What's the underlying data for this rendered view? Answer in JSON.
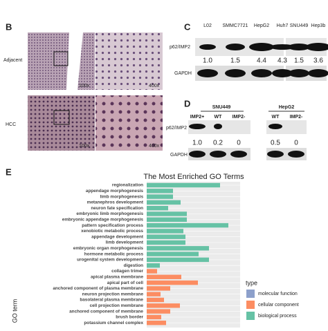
{
  "panels": {
    "b": {
      "label": "B",
      "rows": [
        "Adjacent",
        "HCC"
      ],
      "mags": [
        "100x",
        "400x"
      ]
    },
    "c": {
      "label": "C",
      "lanes": [
        "L02",
        "SMMC7721",
        "HepG2",
        "Huh7",
        "SNU449",
        "Hep3b"
      ],
      "blots": [
        "p62/IMP2",
        "GAPDH"
      ],
      "ratios": [
        "1.0",
        "1.5",
        "4.4",
        "4.3",
        "1.5",
        "3.6"
      ]
    },
    "d": {
      "label": "D",
      "groups": [
        "SNU449",
        "HepG2"
      ],
      "lanes": [
        "IMP2+",
        "WT",
        "IMP2-",
        "WT",
        "IMP2-"
      ],
      "blots": [
        "p62/IMP2",
        "GAPDH"
      ],
      "ratios": [
        "1.0",
        "0.2",
        "0",
        "0.5",
        "0"
      ]
    },
    "e": {
      "label": "E"
    }
  },
  "chart_data": {
    "type": "barh",
    "title": "The Most Enriched GO Terms",
    "ylabel": "GO term",
    "legend_title": "type",
    "categories": [
      "regionalization",
      "appendage morphogenesis",
      "limb morphogenesis",
      "metanephros development",
      "neuron fate specification",
      "embryonic limb morphogenesis",
      "embryonic appendage morphogenesis",
      "pattern specification process",
      "xenobiotic metabolic process",
      "appendage development",
      "limb development",
      "embryonic organ morphogenesis",
      "hormone metabolic process",
      "urogenital system development",
      "digestion",
      "collagen trimer",
      "apical plasma membrane",
      "apical part of cell",
      "anchored component of plasma membrane",
      "neuron projection membrane",
      "basolateral plasma membrane",
      "cell projection membrane",
      "anchored component of membrane",
      "brush border",
      "potassium channel complex"
    ],
    "series": [
      {
        "name": "molecular function",
        "color": "#8da0cb",
        "values": [
          null,
          null,
          null,
          null,
          null,
          null,
          null,
          null,
          null,
          null,
          null,
          null,
          null,
          null,
          null,
          null,
          null,
          null,
          null,
          null,
          null,
          null,
          null,
          null,
          null
        ]
      },
      {
        "name": "cellular component",
        "color": "#fc8d62",
        "values": [
          null,
          null,
          null,
          null,
          null,
          null,
          null,
          null,
          null,
          null,
          null,
          null,
          null,
          null,
          null,
          1.5,
          5.0,
          7.4,
          3.4,
          2.0,
          2.5,
          4.8,
          3.4,
          2.1,
          2.8
        ]
      },
      {
        "name": "biological process",
        "color": "#66c2a5",
        "values": [
          10.6,
          3.8,
          3.8,
          4.9,
          3.1,
          5.8,
          5.8,
          11.8,
          5.3,
          5.6,
          5.6,
          9.0,
          7.5,
          9.0,
          1.9,
          null,
          null,
          null,
          null,
          null,
          null,
          null,
          null,
          null,
          null
        ]
      }
    ],
    "xlim": [
      0,
      13.5
    ]
  }
}
